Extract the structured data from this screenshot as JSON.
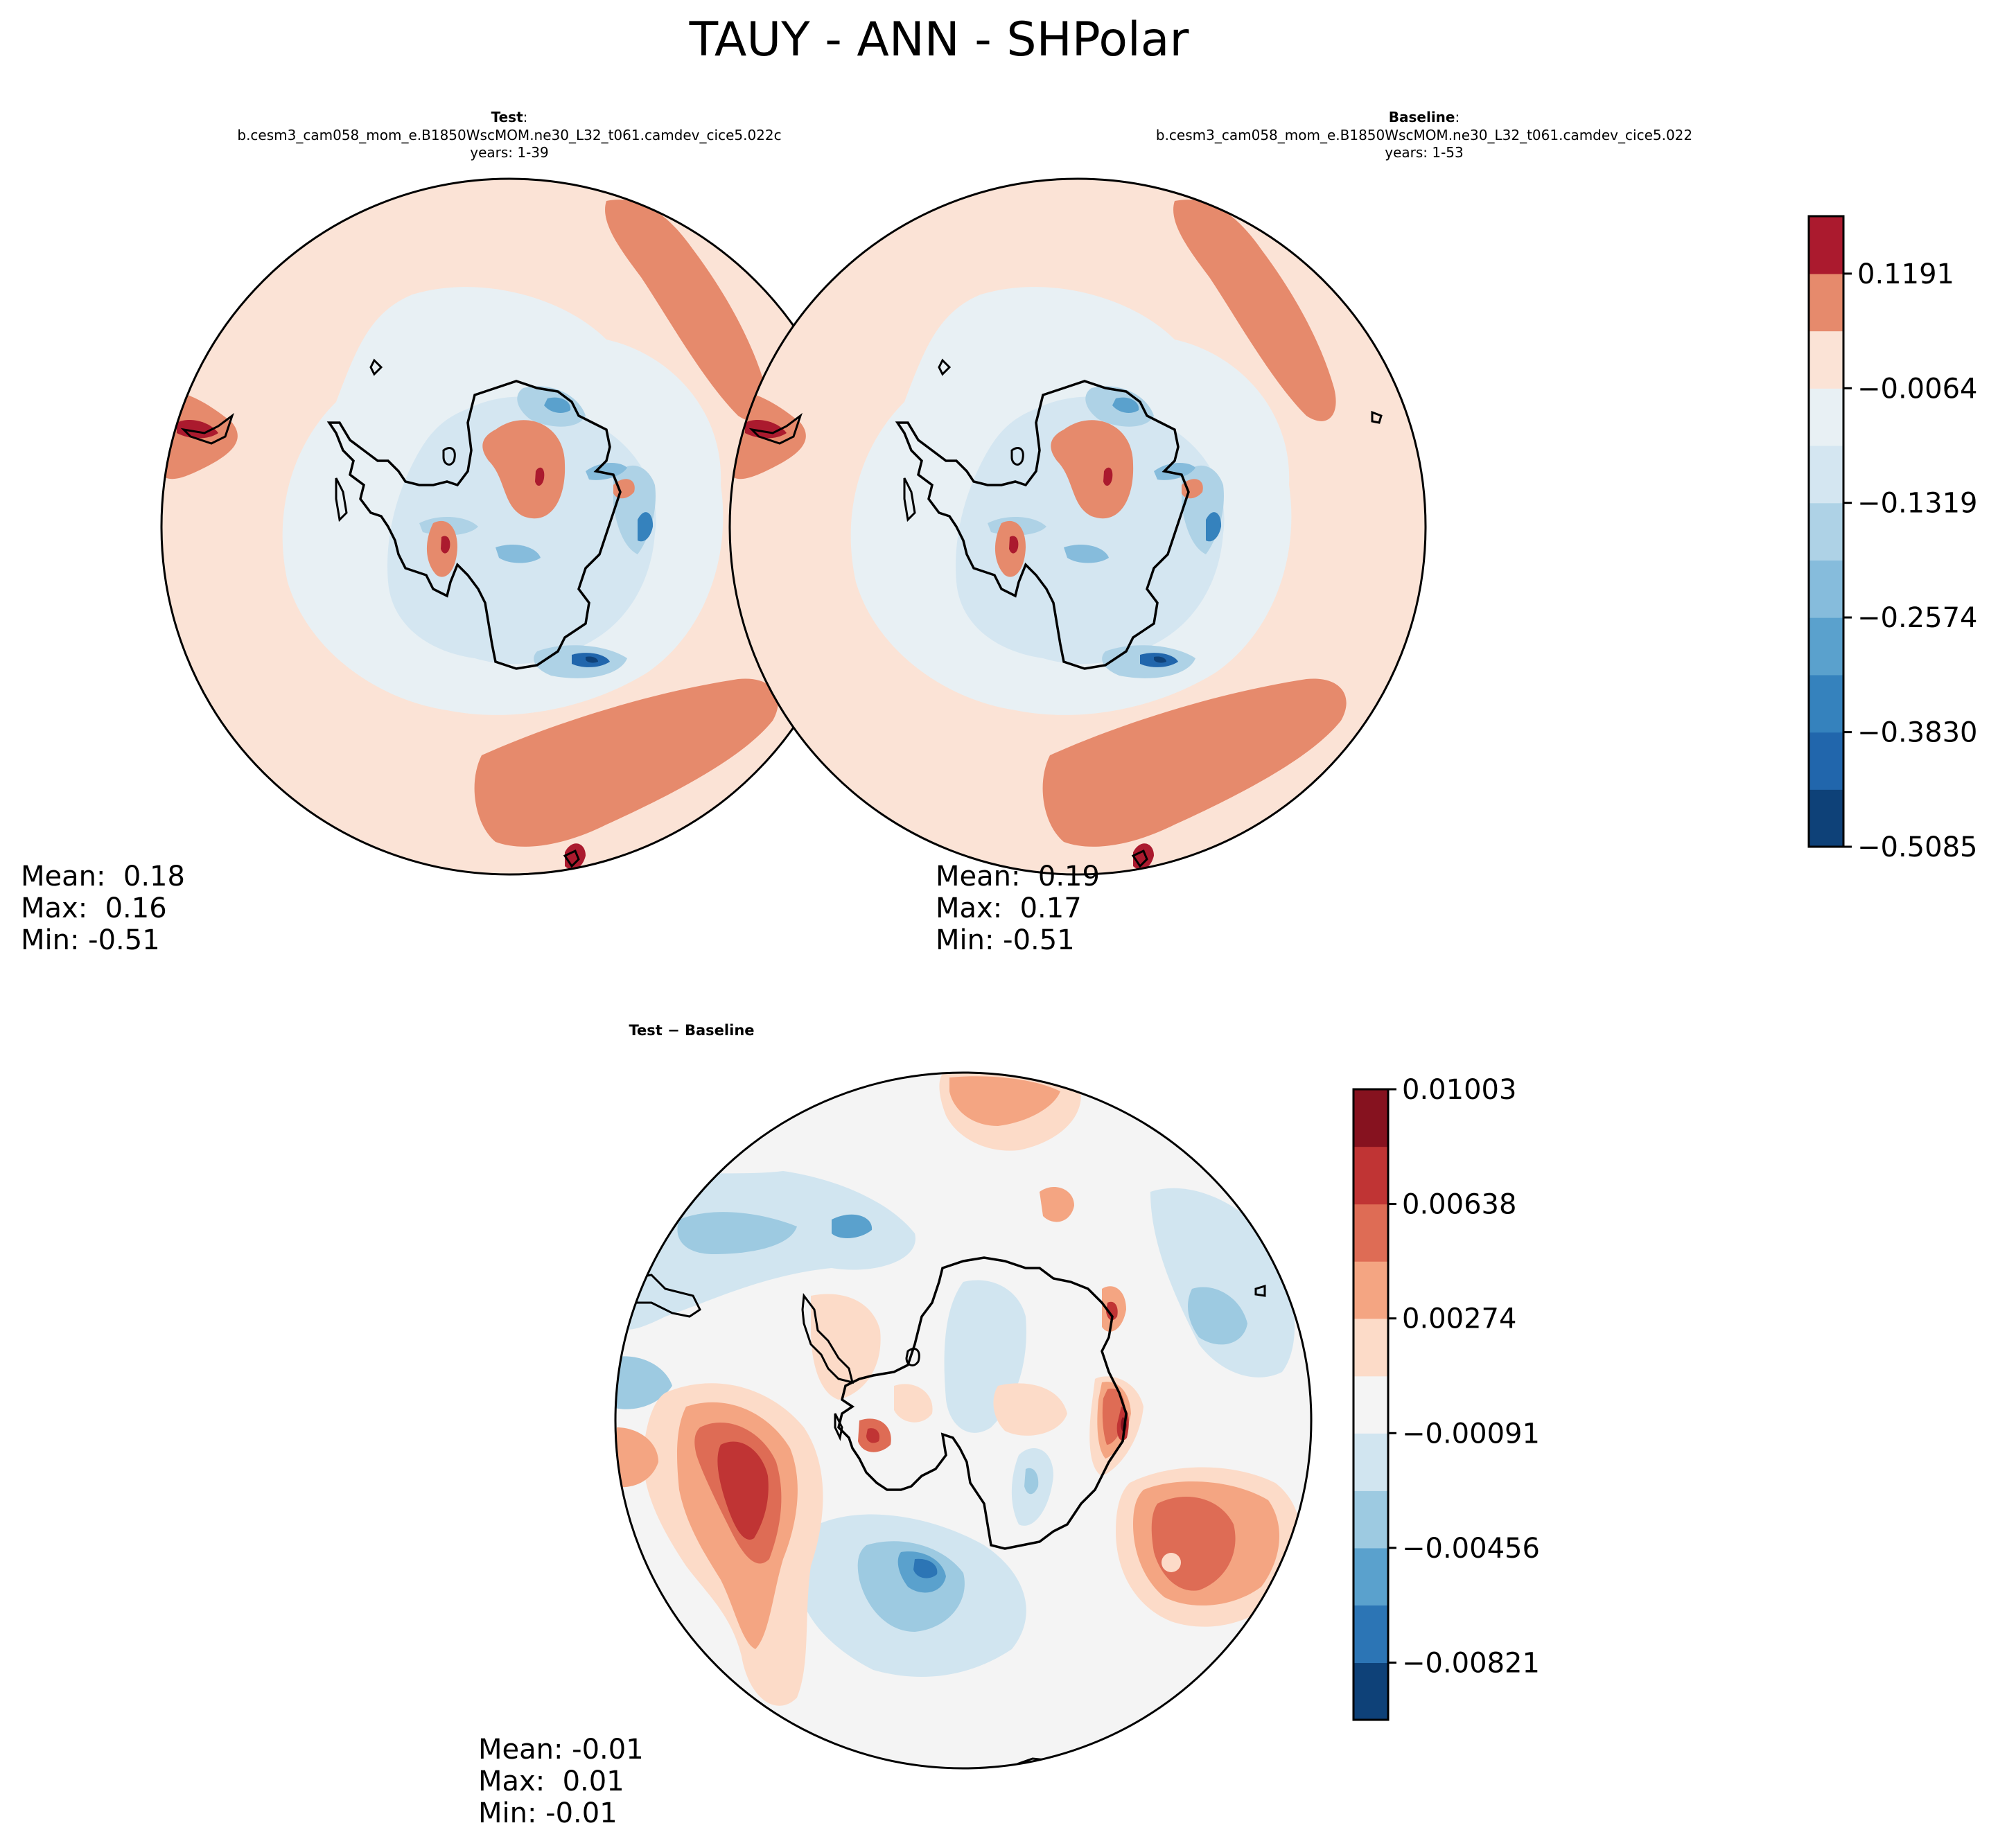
{
  "chart_data": {
    "type": "contour-map",
    "title": "TAUY - ANN - SHPolar",
    "panels": [
      {
        "id": "test",
        "label": "Test",
        "label_suffix": ":",
        "case": "b.cesm3_cam058_mom_e.B1850WscMOM.ne30_L32_t061.camdev_cice5.022c",
        "years": "years: 1-39",
        "stats": {
          "mean": "Mean:  0.18",
          "max": "Max:  0.16",
          "min": "Min: -0.51"
        }
      },
      {
        "id": "baseline",
        "label": "Baseline",
        "label_suffix": ":",
        "case": "b.cesm3_cam058_mom_e.B1850WscMOM.ne30_L32_t061.camdev_cice5.022",
        "years": "years: 1-53",
        "stats": {
          "mean": "Mean:  0.19",
          "max": "Max:  0.17",
          "min": "Min: -0.51"
        }
      },
      {
        "id": "diff",
        "label": "Test − Baseline",
        "stats": {
          "mean": "Mean: -0.01",
          "max": "Max:  0.01",
          "min": "Min: -0.01"
        }
      }
    ],
    "colorbars": [
      {
        "id": "main",
        "range": [
          -0.5085,
          0.182
        ],
        "boundaries": [
          -0.5085,
          -0.4457,
          -0.383,
          -0.3202,
          -0.2574,
          -0.1946,
          -0.1319,
          -0.0691,
          -0.0064,
          0.0564,
          0.1191,
          0.182
        ],
        "colors": [
          "#0e4178",
          "#2166ac",
          "#3582bd",
          "#5aa1cd",
          "#86bcdc",
          "#aed2e6",
          "#d4e6f1",
          "#e8f0f4",
          "#fbe3d6",
          "#e68a6c",
          "#ab1a2e"
        ],
        "tick_values": [
          0.1191,
          -0.0064,
          -0.1319,
          -0.2574,
          -0.383,
          -0.5085
        ],
        "tick_labels": [
          "0.1191",
          "−0.0064",
          "−0.1319",
          "−0.2574",
          "−0.3830",
          "−0.5085"
        ]
      },
      {
        "id": "diff",
        "range": [
          -0.01003,
          0.01003
        ],
        "boundaries": [
          -0.01003,
          -0.00821,
          -0.00638,
          -0.00456,
          -0.00274,
          -0.00091,
          0.00091,
          0.00274,
          0.00456,
          0.00638,
          0.00821,
          0.01003
        ],
        "colors": [
          "#0e4178",
          "#2c75b5",
          "#5aa1cd",
          "#9dcae1",
          "#d1e5f0",
          "#f4f4f4",
          "#fcdbc8",
          "#f4a582",
          "#de6c55",
          "#c03434",
          "#86121f"
        ],
        "tick_values": [
          0.01003,
          0.00638,
          0.00274,
          -0.00091,
          -0.00456,
          -0.00821
        ],
        "tick_labels": [
          "0.01003",
          "0.00638",
          "0.00274",
          "−0.00091",
          "−0.00456",
          "−0.00821"
        ]
      }
    ]
  }
}
